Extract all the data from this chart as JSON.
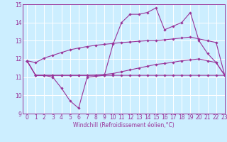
{
  "xlabel": "Windchill (Refroidissement éolien,°C)",
  "background_color": "#cceeff",
  "line_color": "#993399",
  "grid_color": "#ffffff",
  "xlim": [
    -0.5,
    23
  ],
  "ylim": [
    9,
    15
  ],
  "yticks": [
    9,
    10,
    11,
    12,
    13,
    14,
    15
  ],
  "xticks": [
    0,
    1,
    2,
    3,
    4,
    5,
    6,
    7,
    8,
    9,
    10,
    11,
    12,
    13,
    14,
    15,
    16,
    17,
    18,
    19,
    20,
    21,
    22,
    23
  ],
  "line1_y": [
    11.9,
    11.1,
    11.1,
    11.0,
    10.4,
    9.7,
    9.3,
    11.0,
    11.05,
    11.1,
    12.8,
    14.0,
    14.45,
    14.45,
    14.55,
    14.8,
    13.6,
    13.8,
    14.0,
    14.55,
    13.0,
    12.3,
    11.8,
    11.1
  ],
  "line2_y": [
    11.9,
    11.8,
    12.05,
    12.2,
    12.35,
    12.5,
    12.6,
    12.68,
    12.75,
    12.8,
    12.85,
    12.9,
    12.93,
    12.97,
    13.0,
    13.0,
    13.05,
    13.1,
    13.15,
    13.2,
    13.1,
    13.0,
    12.9,
    11.1
  ],
  "line3_y": [
    11.9,
    11.1,
    11.1,
    11.1,
    11.1,
    11.1,
    11.1,
    11.1,
    11.12,
    11.15,
    11.2,
    11.3,
    11.4,
    11.5,
    11.6,
    11.7,
    11.75,
    11.82,
    11.9,
    11.95,
    12.0,
    11.9,
    11.8,
    11.1
  ],
  "line4_y": [
    11.9,
    11.1,
    11.1,
    11.1,
    11.1,
    11.1,
    11.1,
    11.1,
    11.1,
    11.1,
    11.1,
    11.1,
    11.1,
    11.1,
    11.1,
    11.1,
    11.1,
    11.1,
    11.1,
    11.1,
    11.1,
    11.1,
    11.1,
    11.1
  ],
  "xlabel_fontsize": 5.5,
  "tick_fontsize": 5.5,
  "linewidth": 0.8,
  "markersize": 1.8
}
